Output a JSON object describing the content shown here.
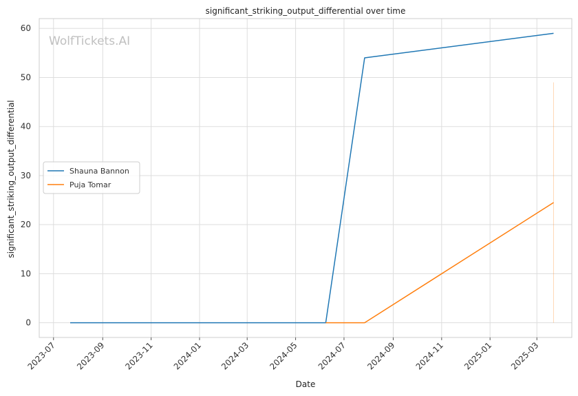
{
  "chart_data": {
    "type": "line",
    "title": "significant_striking_output_differential over time",
    "xlabel": "Date",
    "ylabel": "significant_striking_output_differential",
    "watermark": "WolfTickets.AI",
    "x_ticks": [
      "2023-07",
      "2023-09",
      "2023-11",
      "2024-01",
      "2024-03",
      "2024-05",
      "2024-07",
      "2024-09",
      "2024-11",
      "2025-01",
      "2025-03"
    ],
    "y_ticks": [
      0,
      10,
      20,
      30,
      40,
      50,
      60
    ],
    "xlim": [
      "2023-06-13",
      "2025-04-14"
    ],
    "ylim": [
      -3,
      62
    ],
    "grid": true,
    "legend_position": "center-left",
    "series": [
      {
        "name": "Shauna Bannon",
        "color": "#1f77b4",
        "points": [
          {
            "x": "2023-07-22",
            "y": 0
          },
          {
            "x": "2024-06-08",
            "y": 0
          },
          {
            "x": "2024-07-27",
            "y": 54
          },
          {
            "x": "2025-03-22",
            "y": 59
          }
        ]
      },
      {
        "name": "Puja Tomar",
        "color": "#ff7f0e",
        "points": [
          {
            "x": "2024-06-08",
            "y": 0
          },
          {
            "x": "2024-07-27",
            "y": 0
          },
          {
            "x": "2025-03-22",
            "y": 24.5
          }
        ],
        "error_bars": [
          {
            "x": "2025-03-22",
            "low": 0,
            "high": 49
          }
        ]
      }
    ]
  }
}
